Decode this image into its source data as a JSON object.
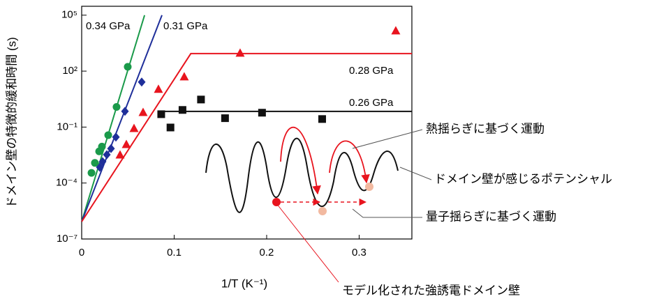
{
  "chart_data": {
    "type": "scatter",
    "x_label": "1/T (K⁻¹)",
    "y_label": "ドメイン壁の特徴的緩和時間 (s)",
    "yscale": "log",
    "xlim": [
      0,
      0.357
    ],
    "ylim": [
      1e-07,
      300000
    ],
    "xticks": [
      0,
      0.1,
      0.2,
      0.3
    ],
    "yticks": [
      {
        "value": 100000,
        "label": "10⁵"
      },
      {
        "value": 100,
        "label": "10²"
      },
      {
        "value": 0.1,
        "label": "10⁻¹"
      },
      {
        "value": 0.0001,
        "label": "10⁻⁴"
      },
      {
        "value": 1e-07,
        "label": "10⁻⁷"
      }
    ],
    "series": [
      {
        "name": "0.34 GPa",
        "color": "#1a9a4a",
        "marker": "circle",
        "x": [
          0.0106,
          0.0143,
          0.0189,
          0.0219,
          0.0287,
          0.0377,
          0.0498
        ],
        "values": [
          0.00035,
          0.0012,
          0.005,
          0.009,
          0.037,
          1.2,
          170
        ],
        "fit_x": [
          0,
          0.068
        ],
        "fit_values": [
          8.5e-07,
          100000
        ]
      },
      {
        "name": "0.31 GPa",
        "color": "#1f2f9a",
        "marker": "diamond",
        "x": [
          0.0196,
          0.0226,
          0.0272,
          0.0317,
          0.037,
          0.0468,
          0.0649
        ],
        "values": [
          0.0007,
          0.0014,
          0.0033,
          0.007,
          0.029,
          0.7,
          26
        ],
        "fit_x": [
          0,
          0.0868
        ],
        "fit_values": [
          8.5e-07,
          100000
        ]
      },
      {
        "name": "0.28 GPa",
        "color": "#e8141e",
        "marker": "triangle",
        "x": [
          0.0415,
          0.0483,
          0.0566,
          0.0664,
          0.083,
          0.1109,
          0.1713,
          0.3396
        ],
        "values": [
          0.0033,
          0.012,
          0.087,
          0.63,
          11,
          51,
          950,
          15000
        ],
        "fit_x": [
          0,
          0.118,
          0.357
        ],
        "fit_values": [
          8.5e-07,
          870,
          870
        ]
      },
      {
        "name": "0.26 GPa",
        "color": "#111111",
        "marker": "square",
        "x": [
          0.086,
          0.096,
          0.109,
          0.129,
          0.155,
          0.195,
          0.26
        ],
        "values": [
          0.49,
          0.095,
          0.83,
          3.0,
          0.3,
          0.59,
          0.27
        ],
        "fit_x": [
          0.084,
          0.357
        ],
        "fit_values": [
          0.69,
          0.69
        ]
      }
    ],
    "annotations": [
      "熱揺らぎに基づく運動",
      "ドメイン壁が感じるポテンシャル",
      "量子揺らぎに基づく運動",
      "モデル化された強誘電ドメイン壁"
    ]
  }
}
